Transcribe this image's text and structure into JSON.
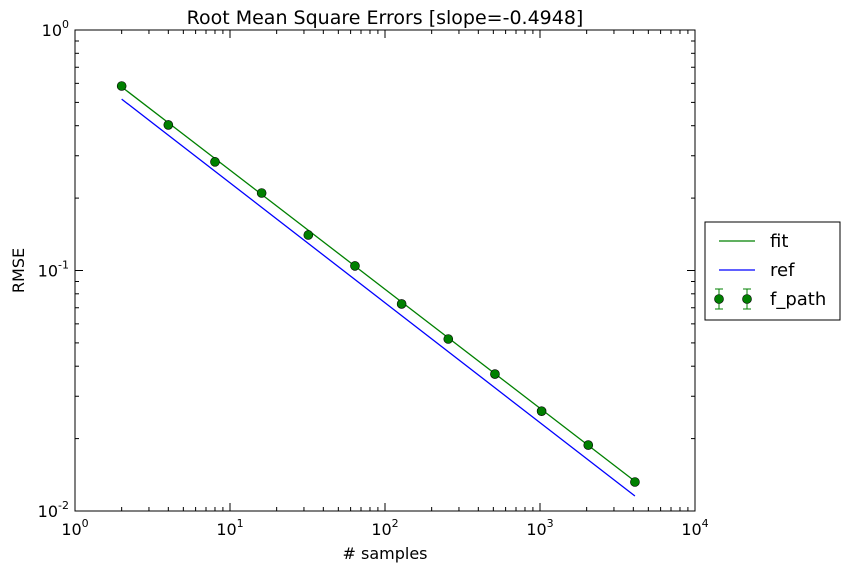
{
  "chart_data": {
    "type": "line",
    "title": "Root Mean Square Errors [slope=-0.4948]",
    "x_label": "# samples",
    "y_label": "RMSE",
    "log_x": true,
    "log_y": true,
    "xlim": [
      1,
      10000
    ],
    "ylim": [
      0.01,
      1
    ],
    "xticks": [
      {
        "value": 1,
        "label": "10",
        "exponent": "0"
      },
      {
        "value": 10,
        "label": "10",
        "exponent": "1"
      },
      {
        "value": 100,
        "label": "10",
        "exponent": "2"
      },
      {
        "value": 1000,
        "label": "10",
        "exponent": "3"
      },
      {
        "value": 10000,
        "label": "10",
        "exponent": "4"
      }
    ],
    "yticks": [
      {
        "value": 0.01,
        "label": "10",
        "exponent": "-2"
      },
      {
        "value": 0.1,
        "label": "10",
        "exponent": "-1"
      },
      {
        "value": 1,
        "label": "10",
        "exponent": "0"
      }
    ],
    "legend_position": "right-outside",
    "series": [
      {
        "name": "fit",
        "color": "#008000",
        "style": "line",
        "x": [
          2,
          4096
        ],
        "values": [
          0.58,
          0.0133
        ]
      },
      {
        "name": "ref",
        "color": "#0000ff",
        "style": "line",
        "x": [
          2,
          4096
        ],
        "values": [
          0.516,
          0.01154
        ]
      },
      {
        "name": "f_path",
        "color": "#008000",
        "style": "errorbar-markers",
        "x": [
          2,
          4,
          8,
          16,
          32,
          64,
          128,
          256,
          512,
          1024,
          2048,
          4096
        ],
        "values": [
          0.585,
          0.403,
          0.283,
          0.21,
          0.1405,
          0.1045,
          0.0726,
          0.0519,
          0.0371,
          0.026,
          0.0188,
          0.0132
        ]
      }
    ]
  }
}
